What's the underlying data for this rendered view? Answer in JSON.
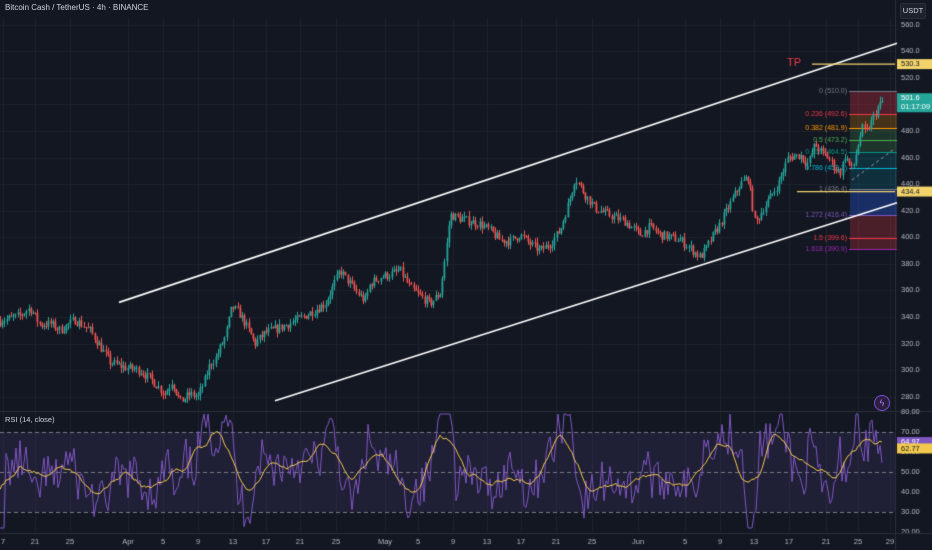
{
  "header": {
    "title": "Bitcoin Cash / TetherUS · 4h · BINANCE",
    "currency": "USDT"
  },
  "rsi_panel": {
    "label": "RSI (14, close)",
    "value_1": "64.97",
    "value_2": "62.77"
  },
  "annotations": {
    "tp_label": "TP",
    "tp_price": "530.3",
    "current_price": "501.6",
    "countdown": "01:17:09",
    "support_price": "434.4"
  },
  "colors": {
    "background": "#131722",
    "grid": "#1e222d",
    "up": "#26a69a",
    "down": "#ef5350",
    "channel": "#ffffff",
    "tp_line": "#f2d46b",
    "rsi_line": "#7e57c2",
    "rsi_ma": "#f2c94c",
    "tp_text": "#f23645"
  },
  "chart_data": [
    {
      "type": "candlestick",
      "ylim": [
        270,
        565
      ],
      "y_ticks": [
        "560.0",
        "540.0",
        "520.0",
        "500.0",
        "480.0",
        "460.0",
        "440.0",
        "420.0",
        "400.0",
        "380.0",
        "360.0",
        "340.0",
        "320.0",
        "300.0",
        "280.0"
      ],
      "x_ticks": [
        "7",
        "21",
        "25",
        "Apr",
        "5",
        "9",
        "13",
        "17",
        "21",
        "25",
        "May",
        "5",
        "9",
        "13",
        "17",
        "21",
        "25",
        "Jun",
        "5",
        "9",
        "13",
        "17",
        "21",
        "25",
        "29"
      ],
      "close_path": [
        [
          0,
          337
        ],
        [
          20,
          341
        ],
        [
          30,
          347
        ],
        [
          40,
          334
        ],
        [
          50,
          335
        ],
        [
          60,
          330
        ],
        [
          75,
          338
        ],
        [
          90,
          330
        ],
        [
          100,
          318
        ],
        [
          110,
          306
        ],
        [
          125,
          302
        ],
        [
          140,
          300
        ],
        [
          155,
          290
        ],
        [
          165,
          282
        ],
        [
          172,
          292
        ],
        [
          180,
          276
        ],
        [
          190,
          282
        ],
        [
          198,
          280
        ],
        [
          205,
          293
        ],
        [
          210,
          305
        ],
        [
          215,
          308
        ],
        [
          225,
          325
        ],
        [
          232,
          348
        ],
        [
          240,
          342
        ],
        [
          245,
          335
        ],
        [
          255,
          320
        ],
        [
          265,
          328
        ],
        [
          280,
          332
        ],
        [
          295,
          337
        ],
        [
          310,
          343
        ],
        [
          325,
          350
        ],
        [
          340,
          375
        ],
        [
          345,
          370
        ],
        [
          355,
          360
        ],
        [
          365,
          352
        ],
        [
          370,
          365
        ],
        [
          380,
          370
        ],
        [
          390,
          372
        ],
        [
          400,
          375
        ],
        [
          410,
          362
        ],
        [
          420,
          356
        ],
        [
          430,
          350
        ],
        [
          440,
          358
        ],
        [
          445,
          385
        ],
        [
          450,
          417
        ],
        [
          460,
          414
        ],
        [
          470,
          412
        ],
        [
          480,
          410
        ],
        [
          490,
          405
        ],
        [
          500,
          398
        ],
        [
          510,
          397
        ],
        [
          520,
          402
        ],
        [
          530,
          395
        ],
        [
          540,
          390
        ],
        [
          550,
          395
        ],
        [
          560,
          405
        ],
        [
          570,
          430
        ],
        [
          575,
          445
        ],
        [
          585,
          432
        ],
        [
          595,
          422
        ],
        [
          605,
          418
        ],
        [
          615,
          415
        ],
        [
          625,
          412
        ],
        [
          640,
          402
        ],
        [
          650,
          408
        ],
        [
          660,
          402
        ],
        [
          670,
          400
        ],
        [
          680,
          398
        ],
        [
          690,
          392
        ],
        [
          700,
          385
        ],
        [
          705,
          390
        ],
        [
          712,
          400
        ],
        [
          720,
          410
        ],
        [
          730,
          425
        ],
        [
          740,
          440
        ],
        [
          748,
          445
        ],
        [
          755,
          410
        ],
        [
          762,
          420
        ],
        [
          770,
          430
        ],
        [
          778,
          440
        ],
        [
          788,
          460
        ],
        [
          800,
          462
        ],
        [
          808,
          455
        ],
        [
          815,
          470
        ],
        [
          820,
          465
        ],
        [
          828,
          460
        ],
        [
          835,
          452
        ],
        [
          840,
          448
        ],
        [
          845,
          462
        ],
        [
          852,
          450
        ],
        [
          858,
          470
        ],
        [
          862,
          482
        ],
        [
          866,
          478
        ],
        [
          872,
          488
        ],
        [
          878,
          498
        ],
        [
          882,
          501.6
        ]
      ],
      "channel": {
        "upper": [
          [
            119,
            351
          ],
          [
            897,
            546
          ]
        ],
        "lower": [
          [
            275,
            277
          ],
          [
            897,
            426
          ]
        ]
      },
      "fibonacci": [
        {
          "level": "0",
          "price": 510.0,
          "label": "0 (510.0)"
        },
        {
          "level": "0.236",
          "price": 492.6,
          "label": "0.236 (492.6)"
        },
        {
          "level": "0.382",
          "price": 481.9,
          "label": "0.382 (481.9)"
        },
        {
          "level": "0.5",
          "price": 473.2,
          "label": "0.5 (473.2)"
        },
        {
          "level": "0.618",
          "price": 464.5,
          "label": "0.618 (464.5)"
        },
        {
          "level": "0.786",
          "price": 452.2,
          "label": "0.786 (452.2)"
        },
        {
          "level": "1",
          "price": 436.4,
          "label": "1 (436.4)"
        },
        {
          "level": "1.272",
          "price": 416.4,
          "label": "1.272 (416.4)"
        },
        {
          "level": "1.5",
          "price": 399.6,
          "label": "1.5 (399.6)"
        },
        {
          "level": "1.618",
          "price": 390.9,
          "label": "1.618 (390.9)"
        }
      ],
      "price_lines": {
        "tp": 530.3,
        "support": 434.4,
        "current": 501.6
      }
    },
    {
      "type": "line",
      "title": "RSI (14, close)",
      "ylim": [
        20,
        80
      ],
      "y_ticks": [
        "80.00",
        "70.00",
        "60.00",
        "50.00",
        "40.00",
        "30.00",
        "20.00"
      ],
      "bands": [
        70,
        50,
        30
      ]
    }
  ]
}
